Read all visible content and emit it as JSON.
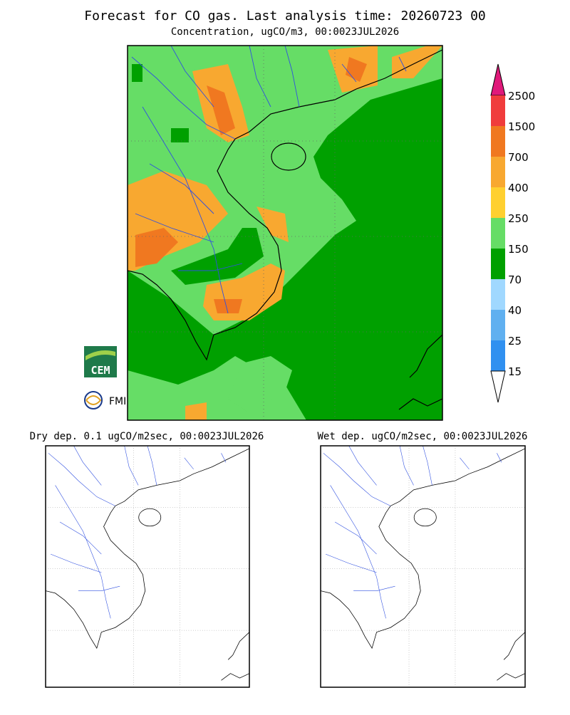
{
  "title": "Forecast for CO gas. Last analysis time: 20260723 00",
  "subtitle": "Concentration, ugCO/m3, 00:0023JUL2026",
  "colorbar": {
    "levels": [
      2500,
      1500,
      700,
      400,
      250,
      150,
      70,
      40,
      25,
      15
    ],
    "colors": [
      "#e0197a",
      "#f03c3c",
      "#f07820",
      "#f8a830",
      "#ffd030",
      "#66dd66",
      "#00a000",
      "#a0d8ff",
      "#60b0f0",
      "#3090f0",
      "#ffffff"
    ]
  },
  "panels": [
    {
      "title": "Dry dep. 0.1 ugCO/m2sec, 00:0023JUL2026"
    },
    {
      "title": "Wet dep. ugCO/m2sec, 00:0023JUL2026"
    }
  ],
  "logos": [
    "CEM",
    "FMI"
  ]
}
